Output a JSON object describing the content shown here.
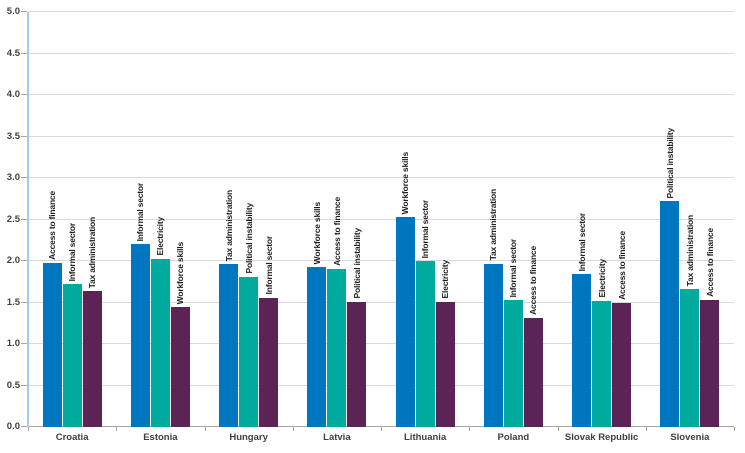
{
  "chart_data": {
    "type": "bar",
    "title": "",
    "xlabel": "",
    "ylabel": "",
    "ylim": [
      0,
      5
    ],
    "ytick_step": 0.5,
    "y_ticks": [
      "0.0",
      "0.5",
      "1.0",
      "1.5",
      "2.0",
      "2.5",
      "3.0",
      "3.5",
      "4.0",
      "4.5",
      "5.0"
    ],
    "grid": true,
    "legend_position": "none",
    "categories": [
      "Croatia",
      "Estonia",
      "Hungary",
      "Latvia",
      "Lithuania",
      "Poland",
      "Slovak Republic",
      "Slovenia"
    ],
    "groups": [
      {
        "category": "Croatia",
        "bars": [
          {
            "label": "Access to finance",
            "value": 1.98
          },
          {
            "label": "Informal sector",
            "value": 1.72
          },
          {
            "label": "Tax administration",
            "value": 1.64
          }
        ]
      },
      {
        "category": "Estonia",
        "bars": [
          {
            "label": "Informal sector",
            "value": 2.2
          },
          {
            "label": "Electricity",
            "value": 2.03
          },
          {
            "label": "Workforce skills",
            "value": 1.44
          }
        ]
      },
      {
        "category": "Hungary",
        "bars": [
          {
            "label": "Tax administration",
            "value": 1.96
          },
          {
            "label": "Political instability",
            "value": 1.81
          },
          {
            "label": "Informal sector",
            "value": 1.56
          }
        ]
      },
      {
        "category": "Latvia",
        "bars": [
          {
            "label": "Workforce skills",
            "value": 1.93
          },
          {
            "label": "Access to finance",
            "value": 1.9
          },
          {
            "label": "Political instability",
            "value": 1.51
          }
        ]
      },
      {
        "category": "Lithuania",
        "bars": [
          {
            "label": "Workforce skills",
            "value": 2.53
          },
          {
            "label": "Informal sector",
            "value": 2.0
          },
          {
            "label": "Electricity",
            "value": 1.51
          }
        ]
      },
      {
        "category": "Poland",
        "bars": [
          {
            "label": "Tax administration",
            "value": 1.97
          },
          {
            "label": "Informal sector",
            "value": 1.53
          },
          {
            "label": "Access to finance",
            "value": 1.31
          }
        ]
      },
      {
        "category": "Slovak Republic",
        "bars": [
          {
            "label": "Informal sector",
            "value": 1.84
          },
          {
            "label": "Electricity",
            "value": 1.52
          },
          {
            "label": "Access to finance",
            "value": 1.5
          }
        ]
      },
      {
        "category": "Slovenia",
        "bars": [
          {
            "label": "Political instability",
            "value": 2.72
          },
          {
            "label": "Tax administration",
            "value": 1.66
          },
          {
            "label": "Access to finance",
            "value": 1.53
          }
        ]
      }
    ],
    "series_colors": [
      "#0076c0",
      "#00ab9d",
      "#5c2357"
    ],
    "axis_colors": {
      "y_axis_line": "#a5cde9",
      "gridline": "#d9d9d9",
      "axis_line": "#a6a6a6",
      "tick_label": "#404040",
      "bar_label": "#1f1f1f"
    }
  }
}
